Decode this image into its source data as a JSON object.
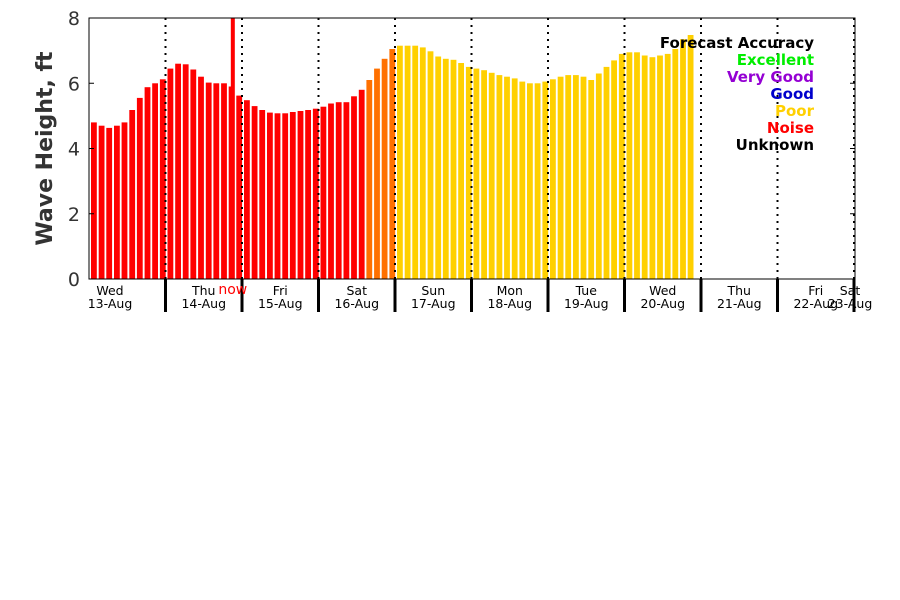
{
  "chart_data": {
    "type": "bar",
    "ylabel": "Wave Height, ft",
    "ylim": [
      0,
      8
    ],
    "yticks": [
      "0",
      "2",
      "4",
      "6",
      "8"
    ],
    "days": [
      {
        "dow": "Wed",
        "date": "13-Aug"
      },
      {
        "dow": "Thu",
        "date": "14-Aug"
      },
      {
        "dow": "Fri",
        "date": "15-Aug"
      },
      {
        "dow": "Sat",
        "date": "16-Aug"
      },
      {
        "dow": "Sun",
        "date": "17-Aug"
      },
      {
        "dow": "Mon",
        "date": "18-Aug"
      },
      {
        "dow": "Tue",
        "date": "19-Aug"
      },
      {
        "dow": "Wed",
        "date": "20-Aug"
      },
      {
        "dow": "Thu",
        "date": "21-Aug"
      },
      {
        "dow": "Fri",
        "date": "22-Aug"
      },
      {
        "dow": "Sat",
        "date": "23-Aug"
      }
    ],
    "now_label": "now",
    "now_day_position": 1.88,
    "now_spike_value": 8.0,
    "values": [
      4.8,
      4.7,
      4.63,
      4.7,
      4.8,
      5.18,
      5.55,
      5.88,
      6.0,
      6.12,
      6.45,
      6.6,
      6.58,
      6.42,
      6.2,
      6.02,
      6.0,
      6.0,
      5.9,
      5.62,
      5.48,
      5.3,
      5.18,
      5.1,
      5.08,
      5.08,
      5.12,
      5.15,
      5.18,
      5.22,
      5.28,
      5.38,
      5.42,
      5.42,
      5.6,
      5.8,
      6.1,
      6.45,
      6.75,
      7.05,
      7.15,
      7.15,
      7.15,
      7.1,
      6.98,
      6.82,
      6.75,
      6.72,
      6.62,
      6.5,
      6.45,
      6.4,
      6.32,
      6.25,
      6.2,
      6.15,
      6.05,
      6.0,
      6.0,
      6.05,
      6.12,
      6.2,
      6.25,
      6.25,
      6.2,
      6.1,
      6.3,
      6.5,
      6.7,
      6.9,
      6.95,
      6.95,
      6.85,
      6.8,
      6.85,
      6.9,
      7.05,
      7.35,
      7.48
    ],
    "series_colors": {
      "noise": "#ff0000",
      "transition": "#ff7000",
      "poor": "#ffd000"
    },
    "noise_count": 36,
    "transition_count": 4,
    "legend": {
      "title": "Forecast Accuracy",
      "items": [
        {
          "label": "Excellent",
          "color": "#00ee00"
        },
        {
          "label": "Very Good",
          "color": "#9400d3"
        },
        {
          "label": "Good",
          "color": "#0000cc"
        },
        {
          "label": "Poor",
          "color": "#ffd000"
        },
        {
          "label": "Noise",
          "color": "#ff0000"
        },
        {
          "label": "Unknown",
          "color": "#000000"
        }
      ]
    }
  }
}
